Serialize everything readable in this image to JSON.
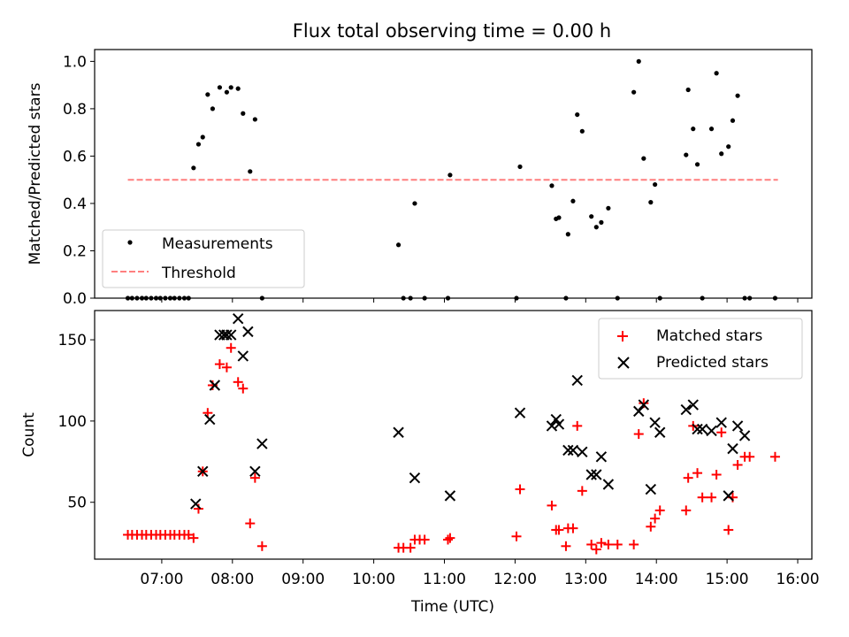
{
  "chart_data": [
    {
      "type": "scatter",
      "title": "Flux total observing time = 0.00 h",
      "xlabel": "",
      "ylabel": "Matched/Predicted stars",
      "xlim_hours": [
        6.05,
        16.2
      ],
      "ylim": [
        0,
        1.05
      ],
      "yticks": [
        "0.0",
        "0.2",
        "0.4",
        "0.6",
        "0.8",
        "1.0"
      ],
      "ytick_values": [
        0,
        0.2,
        0.4,
        0.6,
        0.8,
        1.0
      ],
      "legend_position": "lower-left",
      "series": [
        {
          "name": "Measurements",
          "color": "#000000",
          "marker": "dot",
          "x": [
            6.52,
            6.58,
            6.65,
            6.72,
            6.78,
            6.85,
            6.92,
            6.98,
            7.05,
            7.12,
            7.18,
            7.25,
            7.32,
            7.38,
            7.45,
            7.52,
            7.58,
            7.65,
            7.72,
            7.82,
            7.92,
            7.98,
            8.08,
            8.15,
            8.25,
            8.32,
            8.42,
            10.35,
            10.42,
            10.52,
            10.58,
            10.72,
            11.05,
            11.08,
            12.02,
            12.07,
            12.52,
            12.58,
            12.62,
            12.72,
            12.75,
            12.82,
            12.88,
            12.95,
            13.08,
            13.15,
            13.22,
            13.32,
            13.45,
            13.68,
            13.75,
            13.82,
            13.92,
            13.98,
            14.05,
            14.42,
            14.45,
            14.52,
            14.58,
            14.65,
            14.78,
            14.85,
            14.92,
            15.02,
            15.08,
            15.15,
            15.25,
            15.32,
            15.68
          ],
          "y": [
            0,
            0,
            0,
            0,
            0,
            0,
            0,
            0,
            0,
            0,
            0,
            0,
            0,
            0,
            0.55,
            0.65,
            0.68,
            0.86,
            0.8,
            0.89,
            0.87,
            0.89,
            0.885,
            0.78,
            0.535,
            0.755,
            0,
            0.225,
            0,
            0,
            0.4,
            0,
            0,
            0.52,
            0,
            0.555,
            0.475,
            0.335,
            0.34,
            0,
            0.27,
            0.41,
            0.775,
            0.705,
            0.345,
            0.3,
            0.32,
            0.38,
            0,
            0.87,
            1.0,
            0.59,
            0.405,
            0.48,
            0,
            0.605,
            0.88,
            0.715,
            0.565,
            0,
            0.715,
            0.95,
            0.61,
            0.64,
            0.75,
            0.855,
            0,
            0,
            0
          ]
        },
        {
          "name": "Threshold",
          "color": "#ff7f7f",
          "line_style": "dashed",
          "x": [
            6.52,
            15.72
          ],
          "y": [
            0.5,
            0.5
          ]
        }
      ]
    },
    {
      "type": "scatter",
      "title": "",
      "xlabel": "Time (UTC)",
      "ylabel": "Count",
      "xlim_hours": [
        6.05,
        16.2
      ],
      "ylim": [
        15,
        168
      ],
      "xticks": [
        "07:00",
        "08:00",
        "09:00",
        "10:00",
        "11:00",
        "12:00",
        "13:00",
        "14:00",
        "15:00",
        "16:00"
      ],
      "xtick_hours": [
        7,
        8,
        9,
        10,
        11,
        12,
        13,
        14,
        15,
        16
      ],
      "yticks": [
        "50",
        "100",
        "150"
      ],
      "ytick_values": [
        50,
        100,
        150
      ],
      "legend_position": "upper-right",
      "series": [
        {
          "name": "Matched stars",
          "color": "#ff0000",
          "marker": "plus",
          "x": [
            6.52,
            6.58,
            6.65,
            6.72,
            6.78,
            6.85,
            6.92,
            6.98,
            7.05,
            7.12,
            7.18,
            7.25,
            7.32,
            7.38,
            7.45,
            7.52,
            7.58,
            7.65,
            7.72,
            7.82,
            7.92,
            7.98,
            8.08,
            8.15,
            8.25,
            8.32,
            8.42,
            10.35,
            10.42,
            10.52,
            10.58,
            10.65,
            10.72,
            11.05,
            11.08,
            12.02,
            12.07,
            12.52,
            12.58,
            12.62,
            12.72,
            12.75,
            12.82,
            12.88,
            12.95,
            13.08,
            13.15,
            13.22,
            13.32,
            13.45,
            13.68,
            13.75,
            13.82,
            13.92,
            13.98,
            14.05,
            14.42,
            14.45,
            14.52,
            14.58,
            14.65,
            14.78,
            14.85,
            14.92,
            15.02,
            15.08,
            15.15,
            15.25,
            15.32,
            15.68
          ],
          "y": [
            30,
            30,
            30,
            30,
            30,
            30,
            30,
            30,
            30,
            30,
            30,
            30,
            30,
            30,
            28,
            46,
            69,
            105,
            122,
            135,
            133,
            145,
            124,
            120,
            37,
            65,
            23,
            22,
            22,
            22,
            27,
            27,
            27,
            27,
            28,
            29,
            58,
            48,
            33,
            33,
            23,
            34,
            34,
            97,
            57,
            24,
            21,
            25,
            24,
            24,
            24,
            92,
            111,
            35,
            40,
            45,
            45,
            65,
            97,
            68,
            53,
            53,
            67,
            93,
            33,
            53,
            73,
            78,
            78,
            78
          ]
        },
        {
          "name": "Predicted stars",
          "color": "#000000",
          "marker": "x",
          "x": [
            7.48,
            7.58,
            7.68,
            7.75,
            7.82,
            7.88,
            7.92,
            7.98,
            8.08,
            8.15,
            8.22,
            8.32,
            8.42,
            10.35,
            10.58,
            11.08,
            12.07,
            12.52,
            12.58,
            12.62,
            12.75,
            12.82,
            12.88,
            12.95,
            13.08,
            13.15,
            13.22,
            13.32,
            13.75,
            13.82,
            13.92,
            13.98,
            14.05,
            14.42,
            14.52,
            14.58,
            14.65,
            14.78,
            14.92,
            15.02,
            15.08,
            15.15,
            15.25
          ],
          "y": [
            49,
            69,
            101,
            122,
            153,
            153,
            153,
            153,
            163,
            140,
            155,
            69,
            86,
            93,
            65,
            54,
            105,
            97,
            101,
            98,
            82,
            82,
            125,
            81,
            67,
            67,
            78,
            61,
            106,
            110,
            58,
            99,
            93,
            107,
            110,
            95,
            95,
            94,
            99,
            54,
            83,
            97,
            91
          ]
        }
      ]
    }
  ]
}
